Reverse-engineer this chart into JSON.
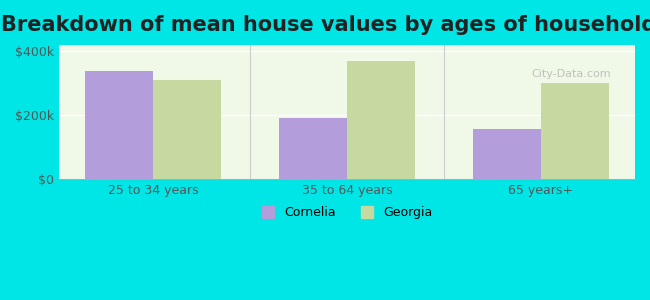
{
  "title": "Breakdown of mean house values by ages of householders",
  "categories": [
    "25 to 34 years",
    "35 to 64 years",
    "65 years+"
  ],
  "cornelia_values": [
    340000,
    193000,
    158000
  ],
  "georgia_values": [
    310000,
    370000,
    300000
  ],
  "ylim": [
    0,
    420000
  ],
  "yticks": [
    0,
    200000,
    400000
  ],
  "ytick_labels": [
    "$0",
    "$200k",
    "$400k"
  ],
  "bar_width": 0.35,
  "cornelia_color": "#b39ddb",
  "georgia_color": "#c5d9a0",
  "background_color": "#00e5e5",
  "plot_bg_color": "#f0f8e8",
  "title_fontsize": 15,
  "legend_labels": [
    "Cornelia",
    "Georgia"
  ],
  "watermark": "City-Data.com"
}
